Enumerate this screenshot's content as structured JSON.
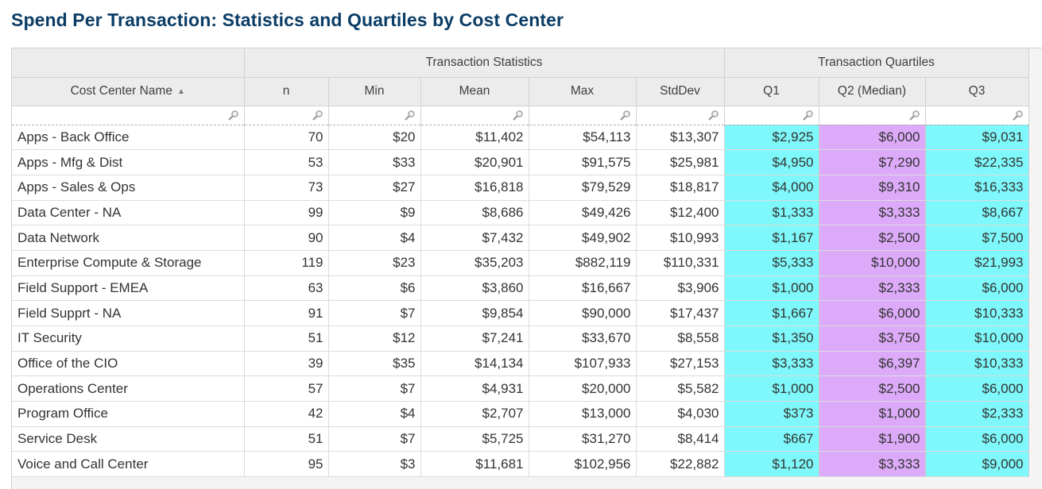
{
  "title": "Spend Per Transaction: Statistics and Quartiles by Cost Center",
  "groups": {
    "stats": "Transaction Statistics",
    "quartiles": "Transaction Quartiles"
  },
  "columns": [
    "Cost Center Name",
    "n",
    "Min",
    "Mean",
    "Max",
    "StdDev",
    "Q1",
    "Q2 (Median)",
    "Q3"
  ],
  "sort": {
    "column": "Cost Center Name",
    "direction": "ascending"
  },
  "colors": {
    "q1_q3": "#7ef8fa",
    "q2": "#dcaaf8",
    "title": "#0b3d66"
  },
  "rows": [
    [
      "Apps - Back Office",
      "70",
      "$20",
      "$11,402",
      "$54,113",
      "$13,307",
      "$2,925",
      "$6,000",
      "$9,031"
    ],
    [
      "Apps - Mfg & Dist",
      "53",
      "$33",
      "$20,901",
      "$91,575",
      "$25,981",
      "$4,950",
      "$7,290",
      "$22,335"
    ],
    [
      "Apps - Sales & Ops",
      "73",
      "$27",
      "$16,818",
      "$79,529",
      "$18,817",
      "$4,000",
      "$9,310",
      "$16,333"
    ],
    [
      "Data Center - NA",
      "99",
      "$9",
      "$8,686",
      "$49,426",
      "$12,400",
      "$1,333",
      "$3,333",
      "$8,667"
    ],
    [
      "Data Network",
      "90",
      "$4",
      "$7,432",
      "$49,902",
      "$10,993",
      "$1,167",
      "$2,500",
      "$7,500"
    ],
    [
      "Enterprise Compute & Storage",
      "119",
      "$23",
      "$35,203",
      "$882,119",
      "$110,331",
      "$5,333",
      "$10,000",
      "$21,993"
    ],
    [
      "Field Support - EMEA",
      "63",
      "$6",
      "$3,860",
      "$16,667",
      "$3,906",
      "$1,000",
      "$2,333",
      "$6,000"
    ],
    [
      "Field Supprt - NA",
      "91",
      "$7",
      "$9,854",
      "$90,000",
      "$17,437",
      "$1,667",
      "$6,000",
      "$10,333"
    ],
    [
      "IT Security",
      "51",
      "$12",
      "$7,241",
      "$33,670",
      "$8,558",
      "$1,350",
      "$3,750",
      "$10,000"
    ],
    [
      "Office of the CIO",
      "39",
      "$35",
      "$14,134",
      "$107,933",
      "$27,153",
      "$3,333",
      "$6,397",
      "$10,333"
    ],
    [
      "Operations Center",
      "57",
      "$7",
      "$4,931",
      "$20,000",
      "$5,582",
      "$1,000",
      "$2,500",
      "$6,000"
    ],
    [
      "Program Office",
      "42",
      "$4",
      "$2,707",
      "$13,000",
      "$4,030",
      "$373",
      "$1,000",
      "$2,333"
    ],
    [
      "Service Desk",
      "51",
      "$7",
      "$5,725",
      "$31,270",
      "$8,414",
      "$667",
      "$1,900",
      "$6,000"
    ],
    [
      "Voice and Call Center",
      "95",
      "$3",
      "$11,681",
      "$102,956",
      "$22,882",
      "$1,120",
      "$3,333",
      "$9,000"
    ]
  ]
}
